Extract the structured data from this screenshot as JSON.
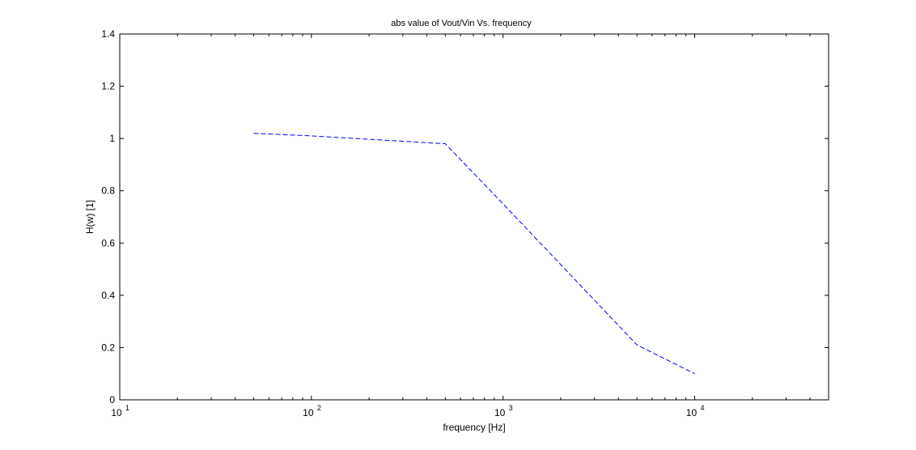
{
  "chart_data": {
    "type": "line",
    "title": "abs value of Vout/Vin Vs. frequency",
    "xlabel": "frequency [Hz]",
    "ylabel": "H(w) [1]",
    "x_scale": "log",
    "xlim": [
      10,
      50000
    ],
    "ylim": [
      0,
      1.4
    ],
    "x_major_ticks": [
      {
        "base": "10",
        "exp": "1"
      },
      {
        "base": "10",
        "exp": "2"
      },
      {
        "base": "10",
        "exp": "3"
      },
      {
        "base": "10",
        "exp": "4"
      }
    ],
    "y_ticks": [
      "0",
      "0.2",
      "0.4",
      "0.6",
      "0.8",
      "1",
      "1.2",
      "1.4"
    ],
    "grid": false,
    "legend": "none",
    "series": [
      {
        "color": "#0000ff",
        "line_style": "dashed",
        "x": [
          50,
          100,
          500,
          1000,
          5000,
          10000
        ],
        "y": [
          1.02,
          1.01,
          0.98,
          0.75,
          0.21,
          0.1
        ]
      }
    ]
  }
}
